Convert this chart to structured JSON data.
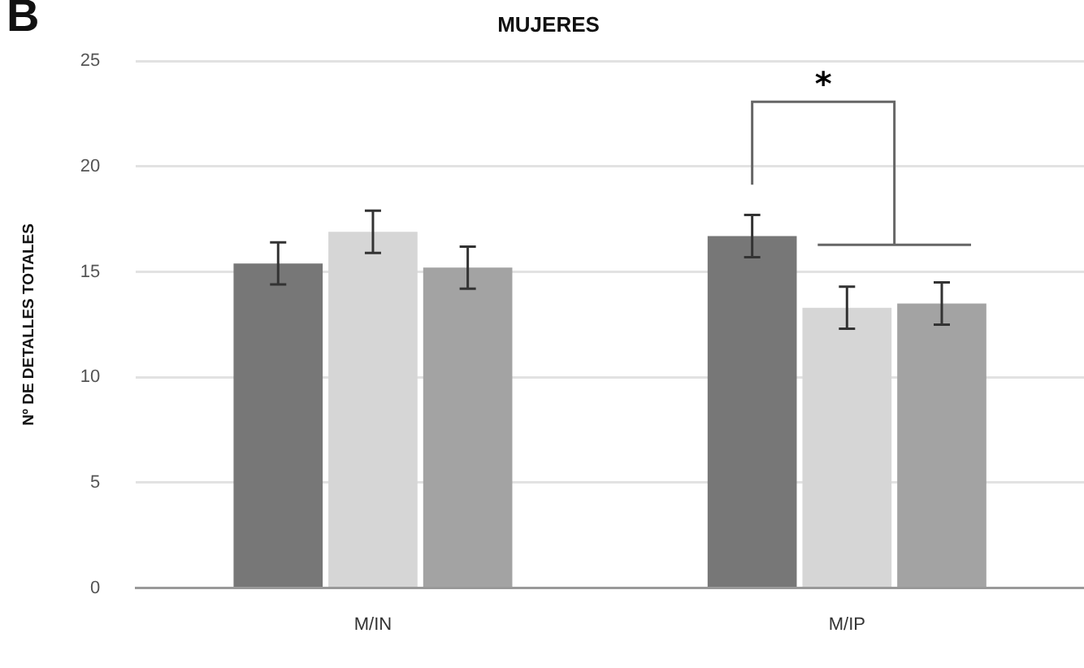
{
  "chart_data": {
    "type": "bar",
    "title": "MUJERES",
    "ylabel": "Nº DE DETALLES TOTALES",
    "categories": [
      "M/IN",
      "M/IP"
    ],
    "series": [
      {
        "color": "#777777",
        "values": [
          15.4,
          16.7
        ],
        "errors": [
          1.0,
          1.0
        ]
      },
      {
        "color": "#d6d6d6",
        "values": [
          16.9,
          13.3
        ],
        "errors": [
          1.0,
          1.0
        ]
      },
      {
        "color": "#a3a3a3",
        "values": [
          15.2,
          13.5
        ],
        "errors": [
          1.0,
          1.0
        ]
      }
    ],
    "ylim": [
      0,
      25
    ],
    "yticks": [
      0,
      5,
      10,
      15,
      20,
      25
    ],
    "grid": "y",
    "legend": false,
    "annotations": [
      "B",
      "*"
    ]
  }
}
